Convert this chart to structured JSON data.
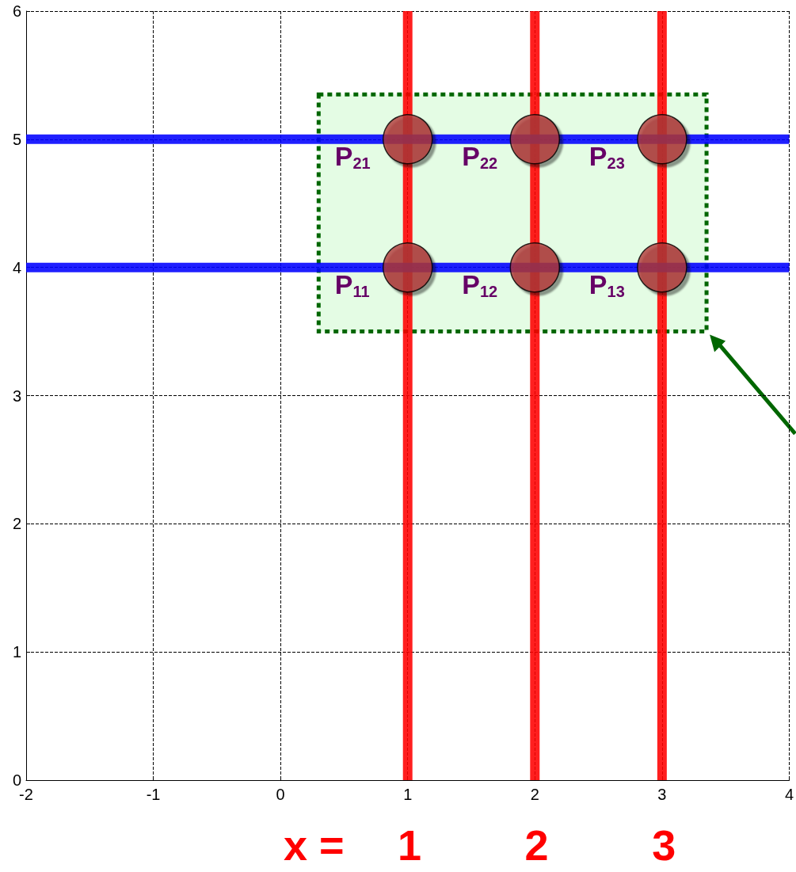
{
  "chart_data": {
    "type": "scatter",
    "series": [
      {
        "color": "#b03a3a",
        "marker": "circle",
        "x": [
          1,
          2,
          3,
          1,
          2,
          3
        ],
        "values": [
          4,
          4,
          4,
          5,
          5,
          5
        ]
      },
      {
        "type": "line",
        "color": "#ff0000",
        "x": [
          1,
          1
        ],
        "values": [
          0,
          6
        ]
      },
      {
        "type": "line",
        "color": "#ff0000",
        "x": [
          2,
          2
        ],
        "values": [
          0,
          6
        ]
      },
      {
        "type": "line",
        "color": "#ff0000",
        "x": [
          3,
          3
        ],
        "values": [
          0,
          6
        ]
      },
      {
        "type": "line",
        "color": "#0000ff",
        "x": [
          -2,
          4
        ],
        "values": [
          4,
          4
        ]
      },
      {
        "type": "line",
        "color": "#0000ff",
        "x": [
          -2,
          4
        ],
        "values": [
          5,
          5
        ]
      }
    ],
    "xlim": [
      -2,
      4
    ],
    "xticks": [
      -2,
      -1,
      0,
      1,
      2,
      3,
      4
    ],
    "ylim": [
      0,
      6
    ],
    "yticks": [
      0,
      1,
      2,
      3,
      4,
      5,
      6
    ],
    "grid": true,
    "annotations": [
      {
        "text": "P$_{11}$",
        "x": 1,
        "y": 4
      },
      {
        "text": "P$_{12}$",
        "x": 2,
        "y": 4
      },
      {
        "text": "P$_{13}$",
        "x": 3,
        "y": 4
      },
      {
        "text": "P$_{21}$",
        "x": 1,
        "y": 5
      },
      {
        "text": "P$_{22}$",
        "x": 2,
        "y": 5
      },
      {
        "text": "P$_{23}$",
        "x": 3,
        "y": 5
      },
      "x =",
      "1",
      "2",
      "3"
    ]
  }
}
